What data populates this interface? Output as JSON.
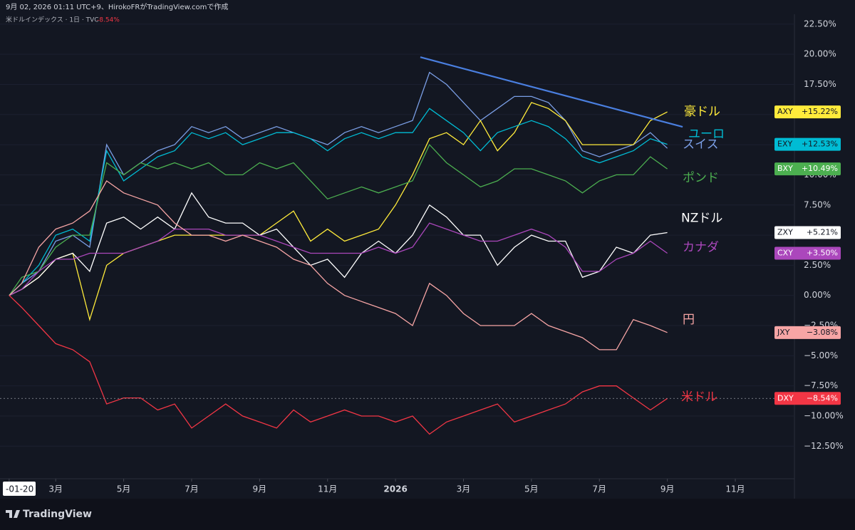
{
  "header": {
    "credit": "9月 02, 2026 01:11 UTC+9、HirokoFRがTradingView.comで作成",
    "symbol_info": "米ドルインデックス · 1日 · TVC",
    "change": "-8.54%"
  },
  "footer": {
    "logo": "TradingView"
  },
  "chart_data": {
    "type": "line",
    "x": [
      0.63,
      1,
      1.5,
      2,
      2.5,
      3,
      3.5,
      4,
      4.5,
      5,
      5.5,
      6,
      6.5,
      7,
      7.5,
      8,
      8.5,
      9,
      9.5,
      10,
      10.5,
      11,
      11.5,
      12,
      12.5,
      13,
      13.5,
      14,
      14.5,
      15,
      15.5,
      16,
      16.5,
      17,
      17.5,
      18,
      18.5,
      19,
      19.5,
      20
    ],
    "xlim": [
      0.36,
      23.74
    ],
    "xticks": [
      {
        "value": 0.63,
        "label": "-01-20"
      },
      {
        "value": 2,
        "label": "3月"
      },
      {
        "value": 4,
        "label": "5月"
      },
      {
        "value": 6,
        "label": "7月"
      },
      {
        "value": 8,
        "label": "9月"
      },
      {
        "value": 10,
        "label": "11月"
      },
      {
        "value": 12,
        "label": "2026"
      },
      {
        "value": 14,
        "label": "3月"
      },
      {
        "value": 16,
        "label": "5月"
      },
      {
        "value": 18,
        "label": "7月"
      },
      {
        "value": 20,
        "label": "9月"
      },
      {
        "value": 22,
        "label": "11月"
      }
    ],
    "ylim": [
      -15.2,
      24.5
    ],
    "yticks": [
      {
        "value": 22.5,
        "label": "22.50%"
      },
      {
        "value": 20,
        "label": "20.00%"
      },
      {
        "value": 17.5,
        "label": "17.50%"
      },
      {
        "value": 15,
        "label": "15.00%"
      },
      {
        "value": 12.5,
        "label": "12.50%"
      },
      {
        "value": 10,
        "label": "10.00%"
      },
      {
        "value": 7.5,
        "label": "7.50%"
      },
      {
        "value": 5,
        "label": "5.00%"
      },
      {
        "value": 2.5,
        "label": "2.50%"
      },
      {
        "value": 0,
        "label": "0.00%"
      },
      {
        "value": -2.5,
        "label": "−2.50%"
      },
      {
        "value": -5,
        "label": "−5.00%"
      },
      {
        "value": -7.5,
        "label": "−7.50%"
      },
      {
        "value": -10,
        "label": "−10.00%"
      },
      {
        "value": -12.5,
        "label": "−12.50%"
      }
    ],
    "series": [
      {
        "name": "スイス",
        "color": "#7b9fe6",
        "values": [
          0,
          1,
          2,
          4.5,
          5,
          4,
          12.5,
          10,
          11,
          12,
          12.5,
          14,
          13.5,
          14,
          13,
          13.5,
          14,
          13.5,
          13,
          12.5,
          13.5,
          14,
          13.5,
          14,
          14.5,
          18.5,
          17.5,
          16,
          14.5,
          15.5,
          16.5,
          16.5,
          16,
          14.5,
          12,
          11.5,
          12,
          12.5,
          13.5,
          12.2
        ]
      },
      {
        "name": "豪ドル",
        "symbol": "AXY",
        "label": "+15.22%",
        "color": "#ffeb3b",
        "values": [
          0,
          0.5,
          1.5,
          3,
          3.5,
          -2,
          2.5,
          3.5,
          4,
          4.5,
          5,
          5,
          5,
          5,
          5,
          5,
          6,
          7,
          4.5,
          5.5,
          4.5,
          5,
          5.5,
          7.5,
          10,
          13,
          13.5,
          12.5,
          14.5,
          12,
          13.5,
          16,
          15.5,
          14.5,
          12.5,
          12.5,
          12.5,
          12.5,
          14.5,
          15.22
        ]
      },
      {
        "name": "ユーロ",
        "symbol": "EXY",
        "label": "+12.53%",
        "color": "#00bcd4",
        "values": [
          0,
          1,
          2.5,
          5,
          5.5,
          4.5,
          12,
          9.5,
          10.5,
          11.5,
          12,
          13.5,
          13,
          13.5,
          12.5,
          13,
          13.5,
          13.5,
          13,
          12,
          13,
          13.5,
          13,
          13.5,
          13.5,
          15.5,
          14.5,
          13.5,
          12,
          13.5,
          14,
          14.5,
          14,
          13,
          11.5,
          11,
          11.5,
          12,
          13,
          12.53
        ]
      },
      {
        "name": "ポンド",
        "symbol": "BXY",
        "label": "+10.49%",
        "color": "#4caf50",
        "values": [
          0,
          1.5,
          2,
          4,
          5,
          5,
          11,
          10,
          11,
          10.5,
          11,
          10.5,
          11,
          10,
          10,
          11,
          10.5,
          11,
          9.5,
          8,
          8.5,
          9,
          8.5,
          9,
          9.5,
          12.5,
          11,
          10,
          9,
          9.5,
          10.5,
          10.5,
          10,
          9.5,
          8.5,
          9.5,
          10,
          10,
          11.5,
          10.49
        ]
      },
      {
        "name": "NZドル",
        "symbol": "ZXY",
        "label": "+5.21%",
        "color": "#ffffff",
        "values": [
          0,
          0.5,
          1.5,
          3,
          3.5,
          2,
          6,
          6.5,
          5.5,
          6.5,
          5.5,
          8.5,
          6.5,
          6,
          6,
          5,
          5.5,
          4,
          2.5,
          3,
          1.5,
          3.5,
          4.5,
          3.5,
          5,
          7.5,
          6.5,
          5,
          5,
          2.5,
          4,
          5,
          4.5,
          4.5,
          1.5,
          2,
          4,
          3.5,
          5,
          5.21
        ]
      },
      {
        "name": "カナダ",
        "symbol": "CXY",
        "label": "+3.50%",
        "color": "#ab47bc",
        "values": [
          0,
          0.5,
          2,
          3,
          3,
          3.5,
          3.5,
          3.5,
          4,
          4.5,
          5.5,
          5.5,
          5.5,
          5,
          5,
          5,
          4.5,
          4,
          3.5,
          3.5,
          3.5,
          3.5,
          4,
          3.5,
          4,
          6,
          5.5,
          5,
          4.5,
          4.5,
          5,
          5.5,
          5,
          4,
          2,
          2,
          3,
          3.5,
          4.5,
          3.5
        ]
      },
      {
        "name": "円",
        "symbol": "JXY",
        "label": "−3.08%",
        "color": "#f7a5a5",
        "values": [
          0,
          1,
          4,
          5.5,
          6,
          7,
          9.5,
          8.5,
          8,
          7.5,
          6,
          5,
          5,
          4.5,
          5,
          4.5,
          4,
          3,
          2.5,
          1,
          0,
          -0.5,
          -1,
          -1.5,
          -2.5,
          1,
          0,
          -1.5,
          -2.5,
          -2.5,
          -2.5,
          -1.5,
          -2.5,
          -3,
          -3.5,
          -4.5,
          -4.5,
          -2,
          -2.5,
          -3.08
        ]
      },
      {
        "name": "米ドル",
        "symbol": "DXY",
        "label": "−8.54%",
        "color": "#f23645",
        "values": [
          0,
          -1,
          -2.5,
          -4,
          -4.5,
          -5.5,
          -9,
          -8.5,
          -8.5,
          -9.5,
          -9,
          -11,
          -10,
          -9,
          -10,
          -10.5,
          -11,
          -9.5,
          -10.5,
          -10,
          -9.5,
          -10,
          -10,
          -10.5,
          -10,
          -11.5,
          -10.5,
          -10,
          -9.5,
          -9,
          -10.5,
          -10,
          -9.5,
          -9,
          -8,
          -7.5,
          -7.5,
          -8.5,
          -9.5,
          -8.54
        ]
      }
    ],
    "trendline": {
      "x": [
        12.73,
        20.45
      ],
      "y": [
        19.76,
        13.98
      ],
      "color": "#4a7fe0"
    }
  }
}
